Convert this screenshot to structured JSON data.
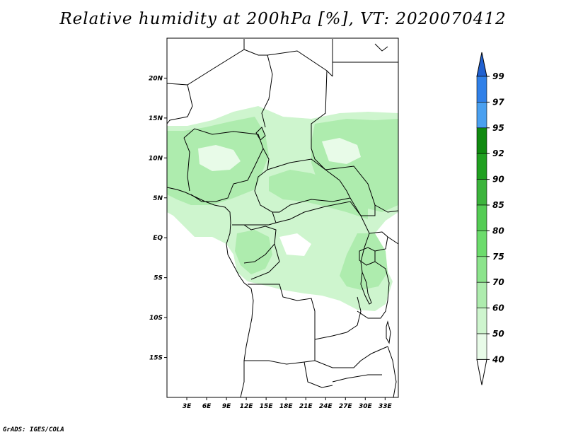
{
  "title": "Relative humidity at 200hPa [%], VT: 2020070412",
  "credit": "GrADS: IGES/COLA",
  "map": {
    "lon_range": [
      0,
      35
    ],
    "lat_range": [
      -20,
      25
    ],
    "lat_ticks": [
      {
        "value": 20,
        "label": "20N"
      },
      {
        "value": 15,
        "label": "15N"
      },
      {
        "value": 10,
        "label": "10N"
      },
      {
        "value": 5,
        "label": "5N"
      },
      {
        "value": 0,
        "label": "EQ"
      },
      {
        "value": -5,
        "label": "5S"
      },
      {
        "value": -10,
        "label": "10S"
      },
      {
        "value": -15,
        "label": "15S"
      }
    ],
    "lon_ticks": [
      {
        "value": 3,
        "label": "3E"
      },
      {
        "value": 6,
        "label": "6E"
      },
      {
        "value": 9,
        "label": "9E"
      },
      {
        "value": 12,
        "label": "12E"
      },
      {
        "value": 15,
        "label": "15E"
      },
      {
        "value": 18,
        "label": "18E"
      },
      {
        "value": 21,
        "label": "21E"
      },
      {
        "value": 24,
        "label": "24E"
      },
      {
        "value": 27,
        "label": "27E"
      },
      {
        "value": 30,
        "label": "30E"
      },
      {
        "value": 33,
        "label": "33E"
      }
    ]
  },
  "colorbar": {
    "levels": [
      "99",
      "97",
      "95",
      "92",
      "90",
      "85",
      "80",
      "75",
      "70",
      "60",
      "50",
      "40"
    ],
    "colors": [
      "#2060d0",
      "#3080e8",
      "#4aa0f0",
      "#108a10",
      "#20a020",
      "#3cb43c",
      "#54cc54",
      "#6cdc6c",
      "#8ce48c",
      "#aeecae",
      "#cef5ce",
      "#e8fbe8"
    ]
  }
}
